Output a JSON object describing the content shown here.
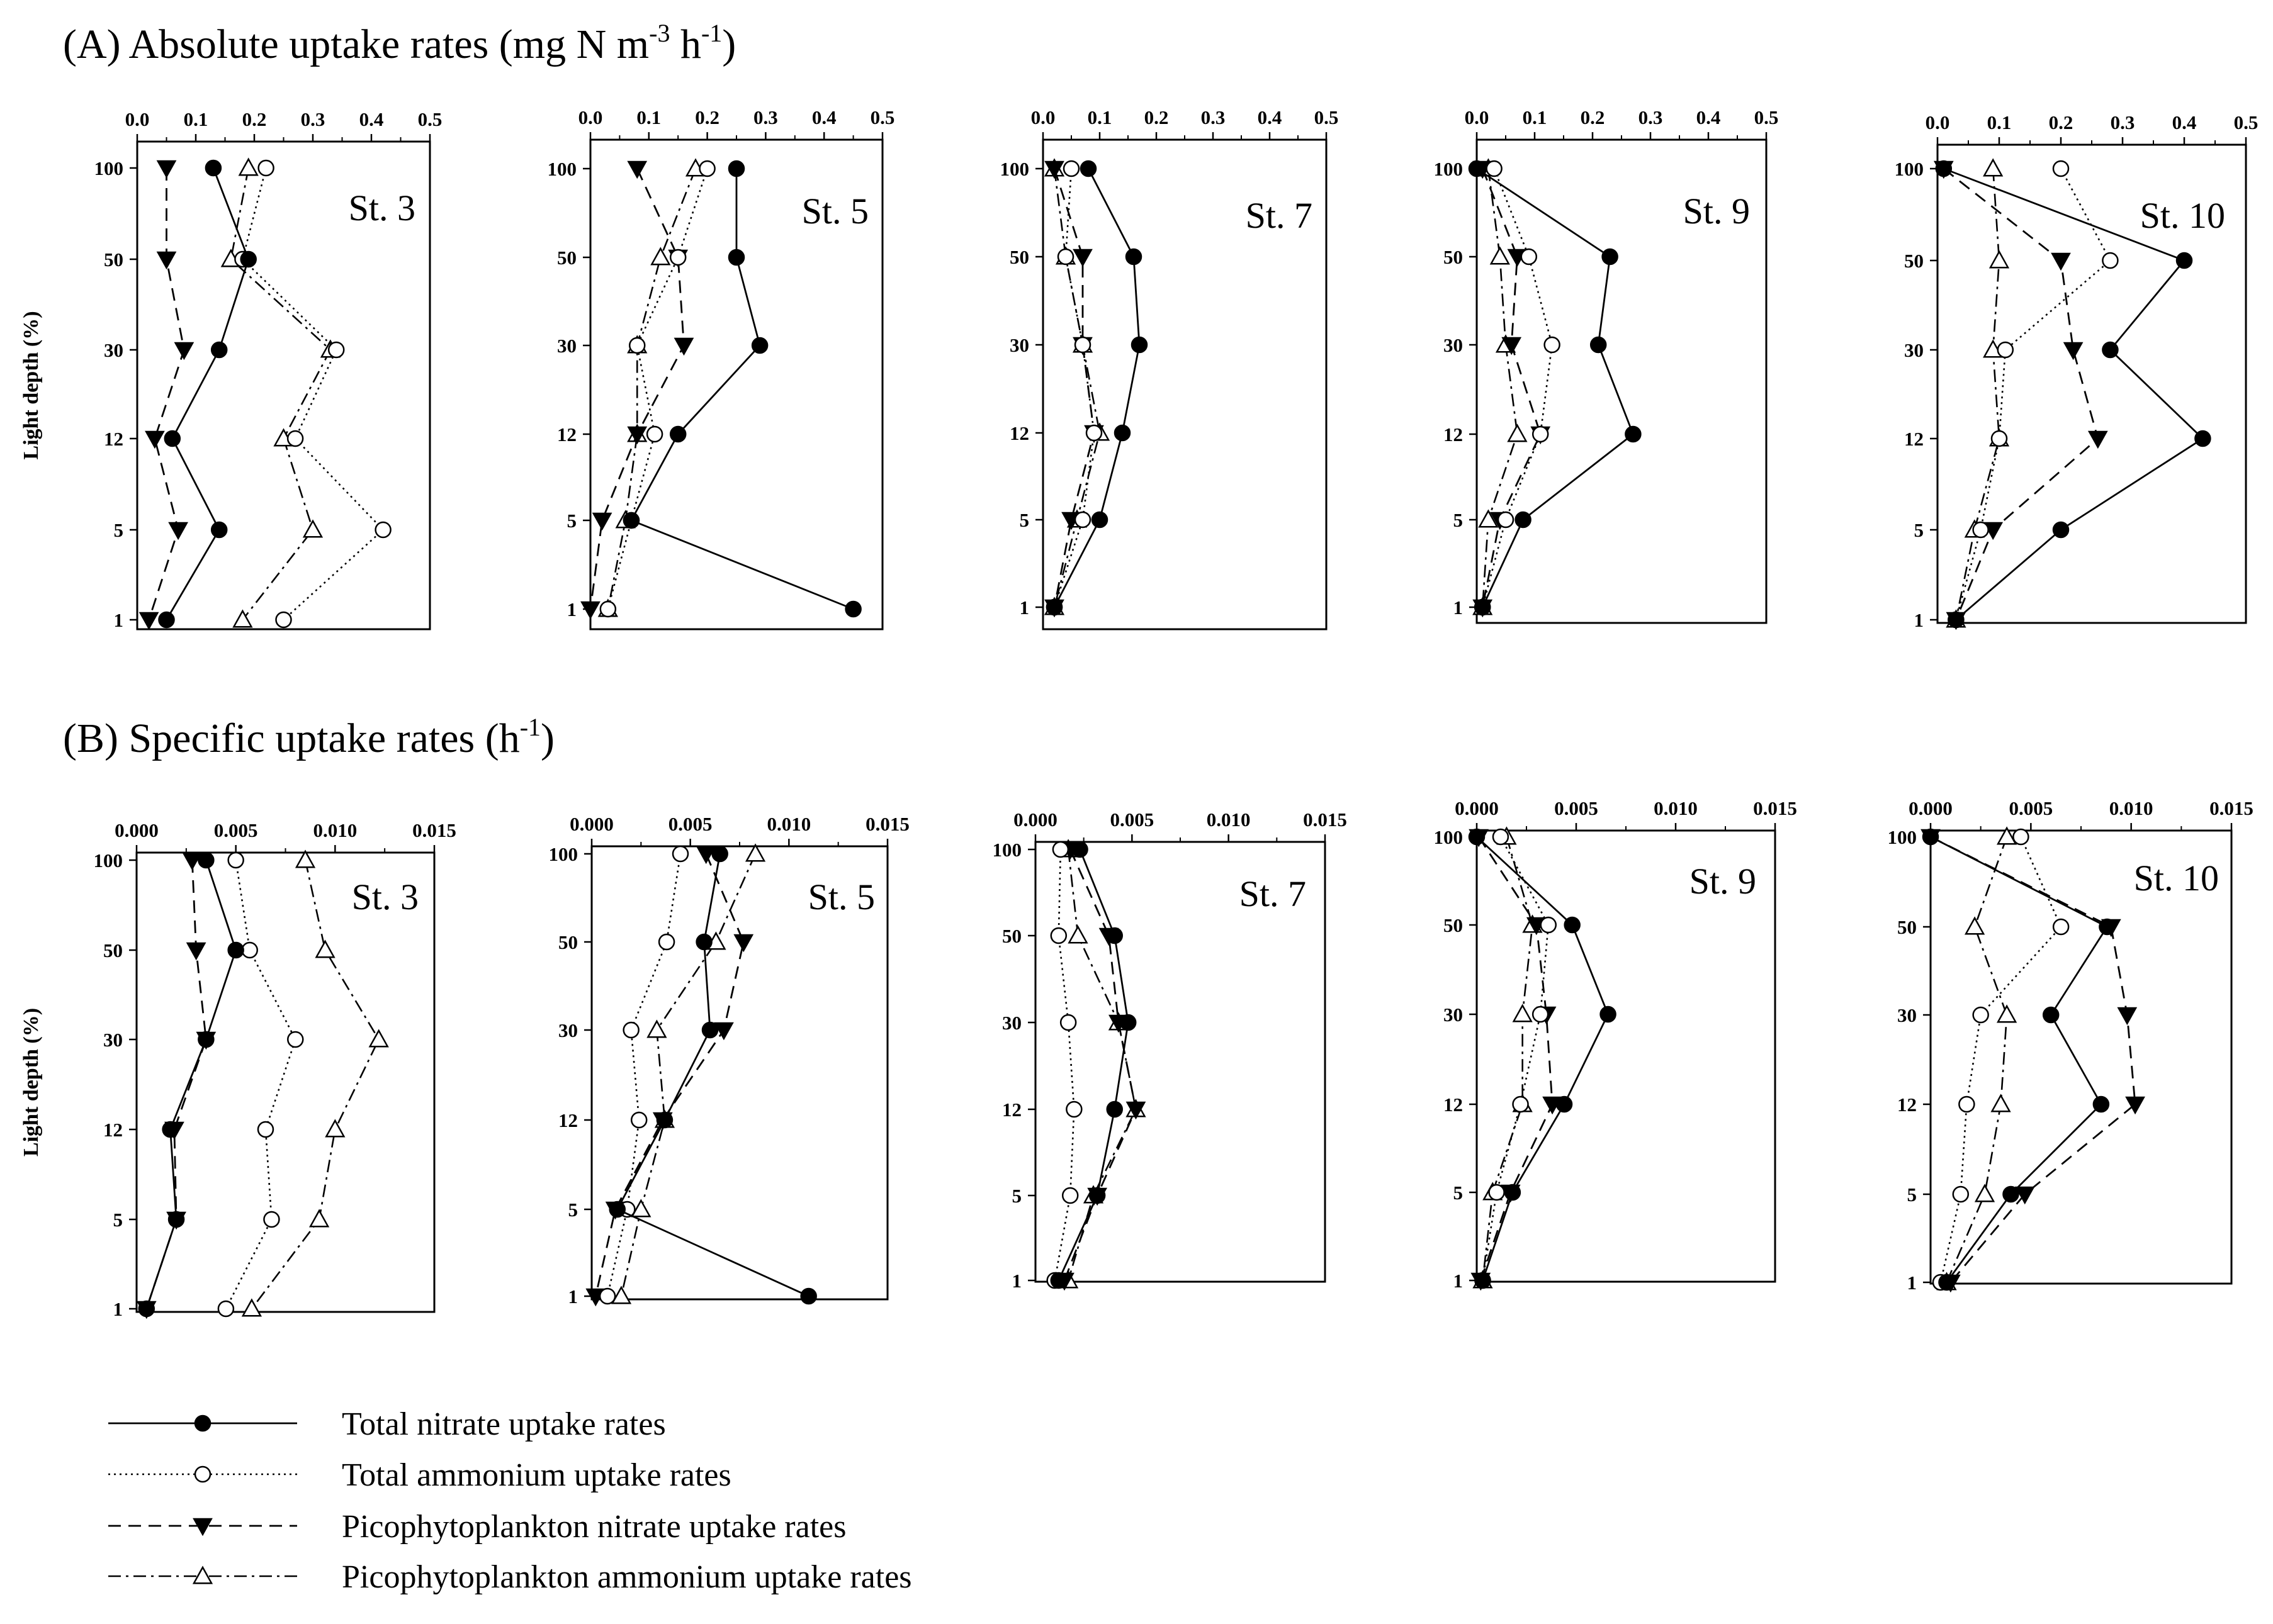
{
  "sections": [
    {
      "id": "A",
      "title": "(A) Absolute uptake rates (mg N m",
      "title_sup": "-3",
      "title_mid": " h",
      "title_sup2": "-1",
      "title_end": ")"
    },
    {
      "id": "B",
      "title": "(B) Specific uptake rates (h",
      "title_sup": "-1",
      "title_end": ")"
    }
  ],
  "ylabel": "Light depth (%)",
  "legend": [
    {
      "key": "tn",
      "label": "Total nitrate uptake rates",
      "line": "solid",
      "marker": "filled-circle"
    },
    {
      "key": "ta",
      "label": "Total ammonium uptake rates",
      "line": "dotted",
      "marker": "open-circle"
    },
    {
      "key": "pn",
      "label": "Picophytoplankton nitrate uptake rates",
      "line": "dashed",
      "marker": "filled-triangle-down"
    },
    {
      "key": "pa",
      "label": "Picophytoplankton ammonium uptake rates",
      "line": "dash-dot",
      "marker": "open-triangle-up"
    }
  ],
  "chart_data": [
    {
      "type": "line",
      "panel": "A",
      "station": "St. 3",
      "x_tick_labels": [
        "0.0",
        "0.1",
        "0.2",
        "0.3",
        "0.4",
        "0.5"
      ],
      "xlim": [
        0,
        0.5
      ],
      "y_categories": [
        "100",
        "50",
        "30",
        "12",
        "5",
        "1"
      ],
      "series": [
        {
          "key": "tn",
          "name": "Total nitrate uptake rates",
          "x": [
            0.13,
            0.19,
            0.14,
            0.06,
            0.14,
            0.05
          ]
        },
        {
          "key": "ta",
          "name": "Total ammonium uptake rates",
          "x": [
            0.22,
            0.18,
            0.34,
            0.27,
            0.42,
            0.25
          ]
        },
        {
          "key": "pn",
          "name": "Picophytoplankton nitrate uptake rates",
          "x": [
            0.05,
            0.05,
            0.08,
            0.03,
            0.07,
            0.02
          ]
        },
        {
          "key": "pa",
          "name": "Picophytoplankton ammonium uptake rates",
          "x": [
            0.19,
            0.16,
            0.33,
            0.25,
            0.3,
            0.18
          ]
        }
      ]
    },
    {
      "type": "line",
      "panel": "A",
      "station": "St. 5",
      "x_tick_labels": [
        "0.0",
        "0.1",
        "0.2",
        "0.3",
        "0.4",
        "0.5"
      ],
      "xlim": [
        0,
        0.5
      ],
      "y_categories": [
        "100",
        "50",
        "30",
        "12",
        "5",
        "1"
      ],
      "series": [
        {
          "key": "tn",
          "name": "Total nitrate uptake rates",
          "x": [
            0.25,
            0.25,
            0.29,
            0.15,
            0.07,
            0.45
          ]
        },
        {
          "key": "ta",
          "name": "Total ammonium uptake rates",
          "x": [
            0.2,
            0.15,
            0.08,
            0.11,
            0.07,
            0.03
          ]
        },
        {
          "key": "pn",
          "name": "Picophytoplankton nitrate uptake rates",
          "x": [
            0.08,
            0.15,
            0.16,
            0.08,
            0.02,
            0.0
          ]
        },
        {
          "key": "pa",
          "name": "Picophytoplankton ammonium uptake rates",
          "x": [
            0.18,
            0.12,
            0.08,
            0.08,
            0.06,
            0.03
          ]
        }
      ]
    },
    {
      "type": "line",
      "panel": "A",
      "station": "St. 7",
      "x_tick_labels": [
        "0.0",
        "0.1",
        "0.2",
        "0.3",
        "0.4",
        "0.5"
      ],
      "xlim": [
        0,
        0.5
      ],
      "y_categories": [
        "100",
        "50",
        "30",
        "12",
        "5",
        "1"
      ],
      "series": [
        {
          "key": "tn",
          "name": "Total nitrate uptake rates",
          "x": [
            0.08,
            0.16,
            0.17,
            0.14,
            0.1,
            0.02
          ]
        },
        {
          "key": "ta",
          "name": "Total ammonium uptake rates",
          "x": [
            0.05,
            0.04,
            0.07,
            0.09,
            0.07,
            0.02
          ]
        },
        {
          "key": "pn",
          "name": "Picophytoplankton nitrate uptake rates",
          "x": [
            0.02,
            0.07,
            0.07,
            0.09,
            0.05,
            0.02
          ]
        },
        {
          "key": "pa",
          "name": "Picophytoplankton ammonium uptake rates",
          "x": [
            0.02,
            0.04,
            0.07,
            0.1,
            0.06,
            0.02
          ]
        }
      ]
    },
    {
      "type": "line",
      "panel": "A",
      "station": "St. 9",
      "x_tick_labels": [
        "0.0",
        "0.1",
        "0.2",
        "0.3",
        "0.4",
        "0.5"
      ],
      "xlim": [
        0,
        0.5
      ],
      "y_categories": [
        "100",
        "50",
        "30",
        "12",
        "5",
        "1"
      ],
      "series": [
        {
          "key": "tn",
          "name": "Total nitrate uptake rates",
          "x": [
            0.0,
            0.23,
            0.21,
            0.27,
            0.08,
            0.01
          ]
        },
        {
          "key": "ta",
          "name": "Total ammonium uptake rates",
          "x": [
            0.03,
            0.09,
            0.13,
            0.11,
            0.05,
            0.01
          ]
        },
        {
          "key": "pn",
          "name": "Picophytoplankton nitrate uptake rates",
          "x": [
            0.01,
            0.07,
            0.06,
            0.11,
            0.04,
            0.01
          ]
        },
        {
          "key": "pa",
          "name": "Picophytoplankton ammonium uptake rates",
          "x": [
            0.02,
            0.04,
            0.05,
            0.07,
            0.02,
            0.01
          ]
        }
      ]
    },
    {
      "type": "line",
      "panel": "A",
      "station": "St. 10",
      "x_tick_labels": [
        "0.0",
        "0.1",
        "0.2",
        "0.3",
        "0.4",
        "0.5"
      ],
      "xlim": [
        0,
        0.5
      ],
      "y_categories": [
        "100",
        "50",
        "30",
        "12",
        "5",
        "1"
      ],
      "series": [
        {
          "key": "tn",
          "name": "Total nitrate uptake rates",
          "x": [
            0.01,
            0.4,
            0.28,
            0.43,
            0.2,
            0.03
          ]
        },
        {
          "key": "ta",
          "name": "Total ammonium uptake rates",
          "x": [
            0.2,
            0.28,
            0.11,
            0.1,
            0.07,
            0.03
          ]
        },
        {
          "key": "pn",
          "name": "Picophytoplankton nitrate uptake rates",
          "x": [
            0.01,
            0.2,
            0.22,
            0.26,
            0.09,
            0.03
          ]
        },
        {
          "key": "pa",
          "name": "Picophytoplankton ammonium uptake rates",
          "x": [
            0.09,
            0.1,
            0.09,
            0.1,
            0.06,
            0.03
          ]
        }
      ]
    },
    {
      "type": "line",
      "panel": "B",
      "station": "St. 3",
      "x_tick_labels": [
        "0.000",
        "0.005",
        "0.010",
        "0.015"
      ],
      "xlim": [
        0,
        0.015
      ],
      "y_categories": [
        "100",
        "50",
        "30",
        "12",
        "5",
        "1"
      ],
      "series": [
        {
          "key": "tn",
          "name": "Total nitrate uptake rates",
          "x": [
            0.0035,
            0.005,
            0.0035,
            0.0017,
            0.002,
            0.0005
          ]
        },
        {
          "key": "ta",
          "name": "Total ammonium uptake rates",
          "x": [
            0.005,
            0.0057,
            0.008,
            0.0065,
            0.0068,
            0.0045
          ]
        },
        {
          "key": "pn",
          "name": "Picophytoplankton nitrate uptake rates",
          "x": [
            0.0028,
            0.003,
            0.0035,
            0.0019,
            0.002,
            0.0005
          ]
        },
        {
          "key": "pa",
          "name": "Picophytoplankton ammonium uptake rates",
          "x": [
            0.0085,
            0.0095,
            0.0122,
            0.01,
            0.0092,
            0.0058
          ]
        }
      ]
    },
    {
      "type": "line",
      "panel": "B",
      "station": "St. 5",
      "x_tick_labels": [
        "0.000",
        "0.005",
        "0.010",
        "0.015"
      ],
      "xlim": [
        0,
        0.015
      ],
      "y_categories": [
        "100",
        "50",
        "30",
        "12",
        "5",
        "1"
      ],
      "series": [
        {
          "key": "tn",
          "name": "Total nitrate uptake rates",
          "x": [
            0.0065,
            0.0057,
            0.006,
            0.0037,
            0.0013,
            0.011
          ]
        },
        {
          "key": "ta",
          "name": "Total ammonium uptake rates",
          "x": [
            0.0045,
            0.0038,
            0.002,
            0.0024,
            0.0018,
            0.0008
          ]
        },
        {
          "key": "pn",
          "name": "Picophytoplankton nitrate uptake rates",
          "x": [
            0.0058,
            0.0077,
            0.0067,
            0.0036,
            0.0012,
            0.0002
          ]
        },
        {
          "key": "pa",
          "name": "Picophytoplankton ammonium uptake rates",
          "x": [
            0.0083,
            0.0063,
            0.0033,
            0.0037,
            0.0025,
            0.0015
          ]
        }
      ]
    },
    {
      "type": "line",
      "panel": "B",
      "station": "St. 7",
      "x_tick_labels": [
        "0.000",
        "0.005",
        "0.010",
        "0.015"
      ],
      "xlim": [
        0,
        0.015
      ],
      "y_categories": [
        "100",
        "50",
        "30",
        "12",
        "5",
        "1"
      ],
      "series": [
        {
          "key": "tn",
          "name": "Total nitrate uptake rates",
          "x": [
            0.0023,
            0.0041,
            0.0048,
            0.0041,
            0.0032,
            0.0012
          ]
        },
        {
          "key": "ta",
          "name": "Total ammonium uptake rates",
          "x": [
            0.0013,
            0.0012,
            0.0017,
            0.002,
            0.0018,
            0.001
          ]
        },
        {
          "key": "pn",
          "name": "Picophytoplankton nitrate uptake rates",
          "x": [
            0.0018,
            0.0038,
            0.0043,
            0.0052,
            0.0032,
            0.0015
          ]
        },
        {
          "key": "pa",
          "name": "Picophytoplankton ammonium uptake rates",
          "x": [
            0.0017,
            0.0022,
            0.0043,
            0.0052,
            0.003,
            0.0017
          ]
        }
      ]
    },
    {
      "type": "line",
      "panel": "B",
      "station": "St. 9",
      "x_tick_labels": [
        "0.000",
        "0.005",
        "0.010",
        "0.015"
      ],
      "xlim": [
        0,
        0.015
      ],
      "y_categories": [
        "100",
        "50",
        "30",
        "12",
        "5",
        "1"
      ],
      "series": [
        {
          "key": "tn",
          "name": "Total nitrate uptake rates",
          "x": [
            0.0,
            0.0048,
            0.0066,
            0.0044,
            0.0018,
            0.0003
          ]
        },
        {
          "key": "ta",
          "name": "Total ammonium uptake rates",
          "x": [
            0.0012,
            0.0036,
            0.0032,
            0.0022,
            0.001,
            0.0003
          ]
        },
        {
          "key": "pn",
          "name": "Picophytoplankton nitrate uptake rates",
          "x": [
            0.0001,
            0.003,
            0.0035,
            0.0038,
            0.0017,
            0.0002
          ]
        },
        {
          "key": "pa",
          "name": "Picophytoplankton ammonium uptake rates",
          "x": [
            0.0015,
            0.0028,
            0.0023,
            0.0023,
            0.0008,
            0.0003
          ]
        }
      ]
    },
    {
      "type": "line",
      "panel": "B",
      "station": "St. 10",
      "x_tick_labels": [
        "0.000",
        "0.005",
        "0.010",
        "0.015"
      ],
      "xlim": [
        0,
        0.015
      ],
      "y_categories": [
        "100",
        "50",
        "30",
        "12",
        "5",
        "1"
      ],
      "series": [
        {
          "key": "tn",
          "name": "Total nitrate uptake rates",
          "x": [
            0.0,
            0.0088,
            0.006,
            0.0085,
            0.004,
            0.0008
          ]
        },
        {
          "key": "ta",
          "name": "Total ammonium uptake rates",
          "x": [
            0.0045,
            0.0065,
            0.0025,
            0.0018,
            0.0015,
            0.0005
          ]
        },
        {
          "key": "pn",
          "name": "Picophytoplankton nitrate uptake rates",
          "x": [
            0.0,
            0.009,
            0.0098,
            0.0102,
            0.0047,
            0.001
          ]
        },
        {
          "key": "pa",
          "name": "Picophytoplankton ammonium uptake rates",
          "x": [
            0.0038,
            0.0022,
            0.0038,
            0.0035,
            0.0027,
            0.0008
          ]
        }
      ]
    }
  ]
}
